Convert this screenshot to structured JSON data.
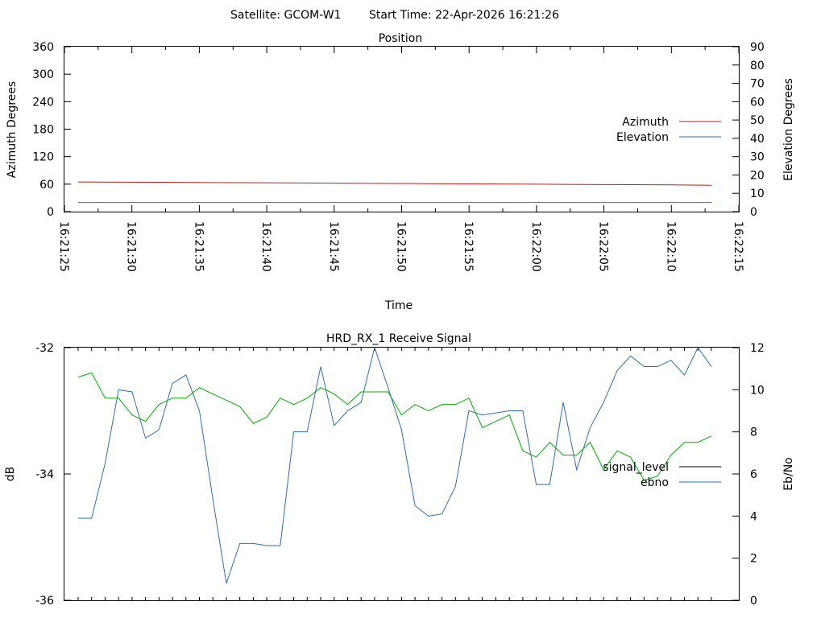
{
  "header": {
    "satellite_label": "Satellite: GCOM-W1",
    "start_time_label": "Start Time: 22-Apr-2026 16:21:26"
  },
  "chart_data": [
    {
      "type": "line",
      "title": "Position",
      "xlabel": "Time",
      "ylabel": "Azimuth Degrees",
      "y2label": "Elevation Degrees",
      "ylim": [
        0,
        360
      ],
      "y2lim": [
        0,
        90
      ],
      "yticks": [
        "0",
        "60",
        "120",
        "180",
        "240",
        "300",
        "360"
      ],
      "y2ticks": [
        "0",
        "10",
        "20",
        "30",
        "40",
        "50",
        "60",
        "70",
        "80",
        "90"
      ],
      "xticks": [
        "16:21:25",
        "16:21:30",
        "16:21:35",
        "16:21:40",
        "16:21:45",
        "16:21:50",
        "16:21:55",
        "16:22:00",
        "16:22:05",
        "16:22:10",
        "16:22:15"
      ],
      "xlim_seconds_after_16_21_25": [
        0,
        50
      ],
      "legend_position": "right",
      "grid": false,
      "series": [
        {
          "name": "Azimuth",
          "axis": "left",
          "color": "#b22222",
          "x": [
            "16:21:26",
            "16:21:30",
            "16:21:32",
            "16:21:35",
            "16:21:40",
            "16:21:45",
            "16:21:50",
            "16:21:52",
            "16:21:55",
            "16:22:00",
            "16:22:02",
            "16:22:05",
            "16:22:10",
            "16:22:13"
          ],
          "values": [
            64.8,
            64.4,
            64.1,
            63.6,
            62.9,
            62.2,
            61.5,
            61.0,
            60.6,
            59.9,
            59.4,
            59.1,
            58.4,
            57.5
          ]
        },
        {
          "name": "Elevation",
          "axis": "right",
          "color": "#2f6fb0",
          "x": [
            "16:21:26",
            "16:22:13"
          ],
          "values": [
            5.0,
            5.0
          ]
        }
      ]
    },
    {
      "type": "line",
      "title": "HRD_RX_1 Receive Signal",
      "ylabel": "dB",
      "y2label": "Eb/No",
      "ylim": [
        -36,
        -32
      ],
      "y2lim": [
        0,
        12
      ],
      "yticks": [
        "-32",
        "-34",
        "-36"
      ],
      "y2ticks": [
        "0",
        "2",
        "4",
        "6",
        "8",
        "10",
        "12"
      ],
      "legend_position": "right",
      "grid": false,
      "series": [
        {
          "name": "signal_level",
          "axis": "left",
          "color": "#000000",
          "values": []
        },
        {
          "name": "ebno",
          "axis": "right",
          "color": "#2f6fb0",
          "values": [
            3.9,
            3.9,
            6.5,
            10.0,
            9.9,
            7.7,
            8.1,
            10.3,
            10.7,
            9.0,
            4.8,
            0.8,
            2.7,
            2.7,
            2.6,
            2.6,
            8.0,
            8.0,
            11.1,
            8.3,
            9.0,
            9.4,
            12.0,
            10.1,
            8.1,
            4.5,
            4.0,
            4.1,
            5.4,
            9.0,
            8.8,
            8.9,
            9.0,
            9.0,
            5.5,
            5.5,
            9.4,
            6.2,
            8.2,
            9.4,
            10.9,
            11.6,
            11.1,
            11.1,
            11.4,
            10.7,
            12.0,
            11.1
          ]
        },
        {
          "name": "",
          "axis": "right",
          "color": "#00b000",
          "values": [
            10.6,
            10.8,
            9.6,
            9.6,
            8.8,
            8.5,
            9.3,
            9.6,
            9.6,
            10.1,
            9.8,
            9.5,
            9.2,
            8.4,
            8.7,
            9.6,
            9.3,
            9.6,
            10.1,
            9.8,
            9.3,
            9.9,
            9.9,
            9.9,
            8.8,
            9.3,
            9.0,
            9.3,
            9.3,
            9.6,
            8.2,
            8.5,
            8.8,
            7.1,
            6.8,
            7.5,
            6.9,
            6.9,
            7.5,
            6.2,
            7.1,
            6.8,
            5.7,
            5.9,
            6.9,
            7.5,
            7.5,
            7.8
          ]
        }
      ]
    }
  ]
}
